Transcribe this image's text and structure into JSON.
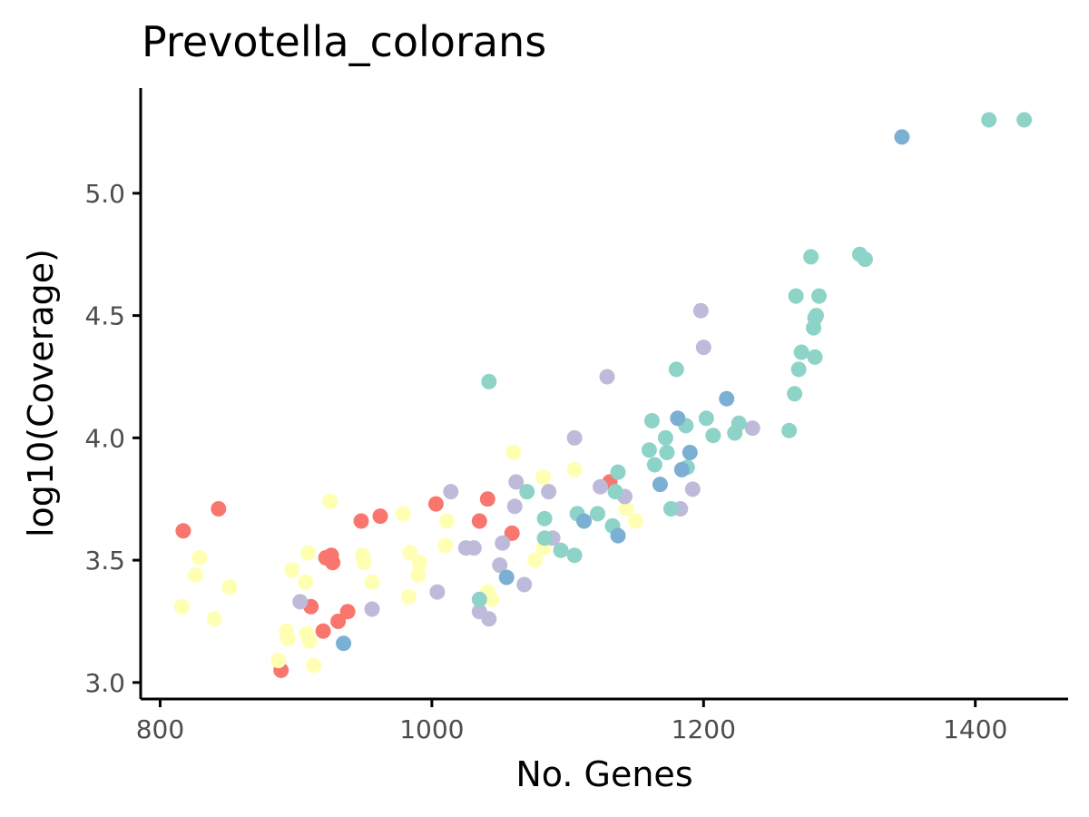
{
  "chart_data": {
    "type": "scatter",
    "title": "Prevotella_colorans",
    "xlabel": "No. Genes",
    "ylabel": "log10(Coverage)",
    "xlim": [
      787,
      1467
    ],
    "ylim": [
      2.94,
      5.43
    ],
    "xticks": [
      "800",
      "1000",
      "1200",
      "1400"
    ],
    "xtick_values": [
      800,
      1000,
      1200,
      1400
    ],
    "yticks": [
      "3.0",
      "3.5",
      "4.0",
      "4.5",
      "5.0"
    ],
    "ytick_values": [
      3.0,
      3.5,
      4.0,
      4.5,
      5.0
    ],
    "grid": false,
    "legend": "none",
    "colors": {
      "salmon": "#F8766D",
      "yellow": "#FFFFB3",
      "lavender": "#BEBADA",
      "teal": "#8DD3C7",
      "blue": "#7BAFD4"
    },
    "series": [
      {
        "color_key": "salmon",
        "points": [
          [
            817,
            3.62
          ],
          [
            843,
            3.71
          ],
          [
            889,
            3.05
          ],
          [
            911,
            3.31
          ],
          [
            920,
            3.21
          ],
          [
            922,
            3.51
          ],
          [
            926,
            3.52
          ],
          [
            927,
            3.49
          ],
          [
            931,
            3.25
          ],
          [
            938,
            3.29
          ],
          [
            948,
            3.66
          ],
          [
            962,
            3.68
          ],
          [
            1003,
            3.73
          ],
          [
            1035,
            3.66
          ],
          [
            1041,
            3.75
          ],
          [
            1059,
            3.61
          ],
          [
            1131,
            3.82
          ]
        ]
      },
      {
        "color_key": "yellow",
        "points": [
          [
            816,
            3.31
          ],
          [
            826,
            3.44
          ],
          [
            829,
            3.51
          ],
          [
            840,
            3.26
          ],
          [
            851,
            3.39
          ],
          [
            887,
            3.09
          ],
          [
            893,
            3.21
          ],
          [
            894,
            3.18
          ],
          [
            897,
            3.46
          ],
          [
            907,
            3.41
          ],
          [
            908,
            3.2
          ],
          [
            909,
            3.53
          ],
          [
            910,
            3.17
          ],
          [
            913,
            3.07
          ],
          [
            925,
            3.74
          ],
          [
            949,
            3.52
          ],
          [
            950,
            3.49
          ],
          [
            956,
            3.41
          ],
          [
            979,
            3.69
          ],
          [
            983,
            3.35
          ],
          [
            984,
            3.53
          ],
          [
            990,
            3.44
          ],
          [
            991,
            3.49
          ],
          [
            1010,
            3.56
          ],
          [
            1011,
            3.66
          ],
          [
            1041,
            3.37
          ],
          [
            1044,
            3.34
          ],
          [
            1060,
            3.94
          ],
          [
            1076,
            3.5
          ],
          [
            1082,
            3.55
          ],
          [
            1082,
            3.84
          ],
          [
            1105,
            3.87
          ],
          [
            1143,
            3.71
          ],
          [
            1150,
            3.66
          ]
        ]
      },
      {
        "color_key": "lavender",
        "points": [
          [
            903,
            3.33
          ],
          [
            956,
            3.3
          ],
          [
            1004,
            3.37
          ],
          [
            1014,
            3.78
          ],
          [
            1025,
            3.55
          ],
          [
            1031,
            3.55
          ],
          [
            1035,
            3.29
          ],
          [
            1042,
            3.26
          ],
          [
            1050,
            3.48
          ],
          [
            1052,
            3.57
          ],
          [
            1061,
            3.72
          ],
          [
            1062,
            3.82
          ],
          [
            1068,
            3.4
          ],
          [
            1086,
            3.78
          ],
          [
            1089,
            3.59
          ],
          [
            1105,
            4.0
          ],
          [
            1124,
            3.8
          ],
          [
            1129,
            4.25
          ],
          [
            1142,
            3.76
          ],
          [
            1183,
            3.71
          ],
          [
            1192,
            3.79
          ],
          [
            1198,
            4.52
          ],
          [
            1200,
            4.37
          ],
          [
            1236,
            4.04
          ]
        ]
      },
      {
        "color_key": "teal",
        "points": [
          [
            1035,
            3.34
          ],
          [
            1042,
            4.23
          ],
          [
            1070,
            3.78
          ],
          [
            1083,
            3.59
          ],
          [
            1083,
            3.67
          ],
          [
            1095,
            3.54
          ],
          [
            1105,
            3.52
          ],
          [
            1107,
            3.69
          ],
          [
            1122,
            3.69
          ],
          [
            1133,
            3.64
          ],
          [
            1135,
            3.78
          ],
          [
            1137,
            3.86
          ],
          [
            1160,
            3.95
          ],
          [
            1162,
            4.07
          ],
          [
            1164,
            3.89
          ],
          [
            1172,
            4.0
          ],
          [
            1173,
            3.94
          ],
          [
            1176,
            3.71
          ],
          [
            1180,
            4.28
          ],
          [
            1187,
            4.05
          ],
          [
            1188,
            3.88
          ],
          [
            1202,
            4.08
          ],
          [
            1207,
            4.01
          ],
          [
            1223,
            4.02
          ],
          [
            1226,
            4.06
          ],
          [
            1263,
            4.03
          ],
          [
            1267,
            4.18
          ],
          [
            1268,
            4.58
          ],
          [
            1270,
            4.28
          ],
          [
            1272,
            4.35
          ],
          [
            1279,
            4.74
          ],
          [
            1281,
            4.45
          ],
          [
            1282,
            4.49
          ],
          [
            1282,
            4.33
          ],
          [
            1283,
            4.5
          ],
          [
            1285,
            4.58
          ],
          [
            1315,
            4.75
          ],
          [
            1319,
            4.73
          ],
          [
            1410,
            5.3
          ],
          [
            1436,
            5.3
          ]
        ]
      },
      {
        "color_key": "blue",
        "points": [
          [
            935,
            3.16
          ],
          [
            1055,
            3.43
          ],
          [
            1112,
            3.66
          ],
          [
            1137,
            3.6
          ],
          [
            1168,
            3.81
          ],
          [
            1181,
            4.08
          ],
          [
            1184,
            3.87
          ],
          [
            1190,
            3.94
          ],
          [
            1217,
            4.16
          ],
          [
            1346,
            5.23
          ]
        ]
      }
    ]
  }
}
